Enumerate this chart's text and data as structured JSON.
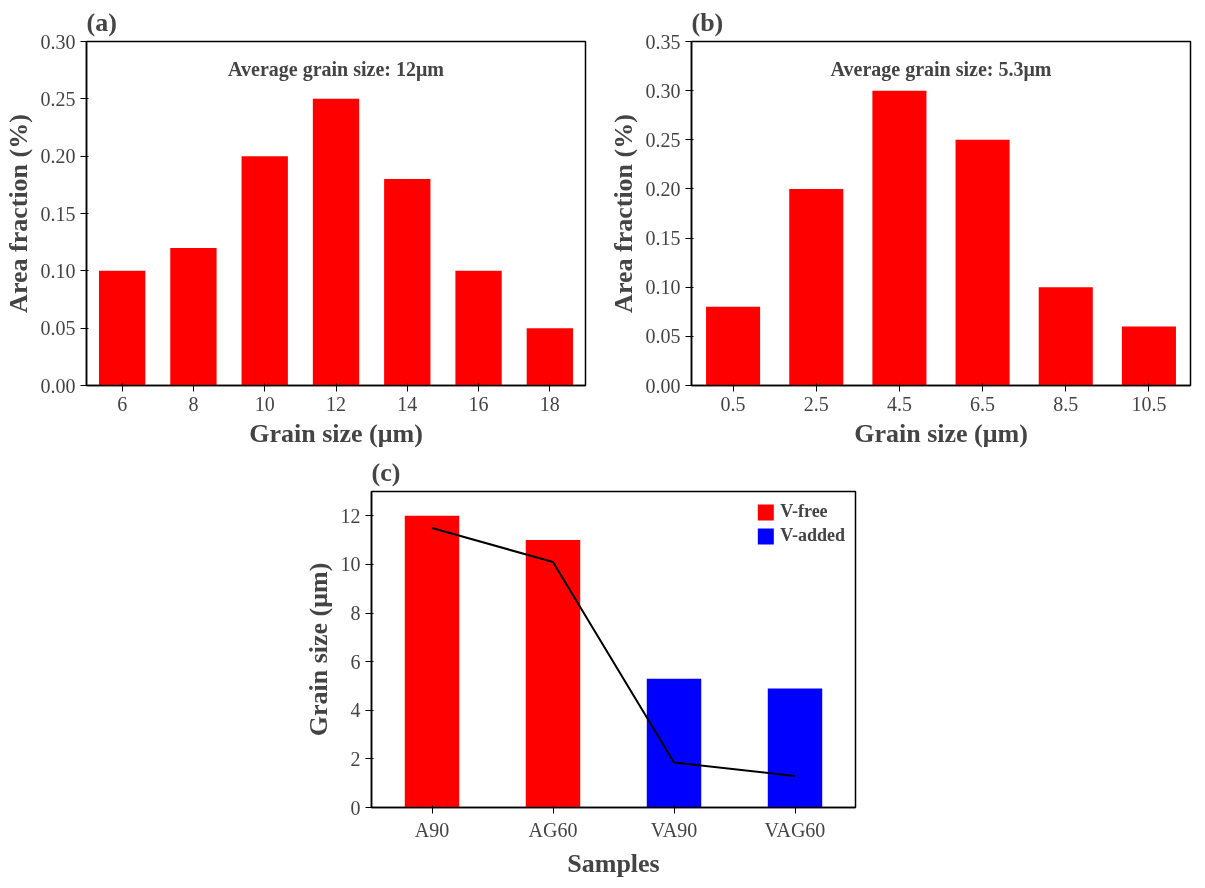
{
  "chart_data": [
    {
      "type": "bar",
      "title": "(a)",
      "xlabel": "Grain size (μm)",
      "ylabel": "Area fraction (%)",
      "categories": [
        "6",
        "8",
        "10",
        "12",
        "14",
        "16",
        "18"
      ],
      "values": [
        0.1,
        0.12,
        0.2,
        0.25,
        0.18,
        0.1,
        0.05
      ],
      "color": "#ff0000",
      "ylim": [
        0,
        0.3
      ],
      "yticks": [
        {
          "value": 0,
          "label": "0.00"
        },
        {
          "value": 0.05,
          "label": "0.05"
        },
        {
          "value": 0.1,
          "label": "0.10"
        },
        {
          "value": 0.15,
          "label": "0.15"
        },
        {
          "value": 0.2,
          "label": "0.20"
        },
        {
          "value": 0.25,
          "label": "0.25"
        },
        {
          "value": 0.3,
          "label": "0.30"
        }
      ],
      "annotations": [
        "Average grain size: 12μm"
      ],
      "grid": false,
      "legend": false
    },
    {
      "type": "bar",
      "title": "(b)",
      "xlabel": "Grain size (μm)",
      "ylabel": "Area fraction (%)",
      "categories": [
        "0.5",
        "2.5",
        "4.5",
        "6.5",
        "8.5",
        "10.5"
      ],
      "values": [
        0.08,
        0.2,
        0.3,
        0.25,
        0.1,
        0.06
      ],
      "color": "#ff0000",
      "ylim": [
        0,
        0.35
      ],
      "yticks": [
        {
          "value": 0,
          "label": "0.00"
        },
        {
          "value": 0.05,
          "label": "0.05"
        },
        {
          "value": 0.1,
          "label": "0.10"
        },
        {
          "value": 0.15,
          "label": "0.15"
        },
        {
          "value": 0.2,
          "label": "0.20"
        },
        {
          "value": 0.25,
          "label": "0.25"
        },
        {
          "value": 0.3,
          "label": "0.30"
        },
        {
          "value": 0.35,
          "label": "0.35"
        }
      ],
      "annotations": [
        "Average grain size: 5.3μm"
      ],
      "grid": false,
      "legend": false
    },
    {
      "type": "bar",
      "title": "(c)",
      "xlabel": "Samples",
      "ylabel": "Grain size (μm)",
      "categories": [
        "A90",
        "AG60",
        "VA90",
        "VAG60"
      ],
      "series": [
        {
          "name": "V-free",
          "color": "#ff0000",
          "values": [
            12,
            11,
            null,
            null
          ]
        },
        {
          "name": "V-added",
          "color": "#0000ff",
          "values": [
            null,
            null,
            5.3,
            4.9
          ]
        },
        {
          "type": "line",
          "color": "#000000",
          "values": [
            11.5,
            10.1,
            1.85,
            1.3
          ]
        }
      ],
      "ylim": [
        0,
        13
      ],
      "yticks": [
        0,
        2,
        4,
        6,
        8,
        10,
        12
      ],
      "grid": false,
      "legend": "top right"
    }
  ]
}
